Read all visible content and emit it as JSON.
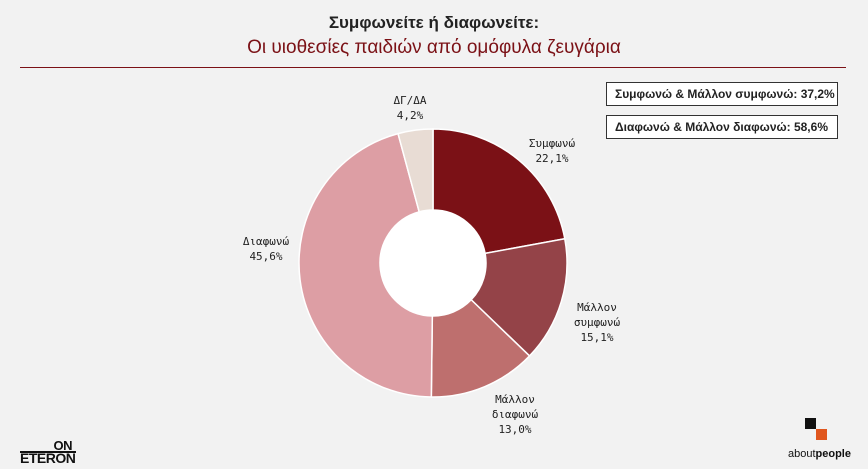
{
  "header": {
    "title": "Συμφωνείτε ή διαφωνείτε:",
    "subtitle": "Οι υιοθεσίες παιδιών από ομόφυλα ζευγάρια"
  },
  "summary": {
    "agree_total": "Συμφωνώ & Μάλλον συμφωνώ: 37,2%",
    "disagree_total": "Διαφωνώ & Μάλλον διαφωνώ: 58,6%"
  },
  "chart_data": {
    "type": "pie",
    "donut": true,
    "slices": [
      {
        "label": "Συμφωνώ",
        "value": 22.1,
        "display": "22,1%",
        "color": "#7b1116"
      },
      {
        "label": "Μάλλον συμφωνώ",
        "value": 15.1,
        "display": "15,1%",
        "color": "#944348"
      },
      {
        "label": "Μάλλον διαφωνώ",
        "value": 13.0,
        "display": "13,0%",
        "color": "#be6f6e"
      },
      {
        "label": "Διαφωνώ",
        "value": 45.6,
        "display": "45,6%",
        "color": "#dd9ea4"
      },
      {
        "label": "ΔΓ/ΔΑ",
        "value": 4.2,
        "display": "4,2%",
        "color": "#e8dcd4"
      }
    ]
  },
  "logos": {
    "left_top": "ON",
    "left_bottom": "ETERON",
    "right_brand_a": "about",
    "right_brand_b": "people"
  }
}
